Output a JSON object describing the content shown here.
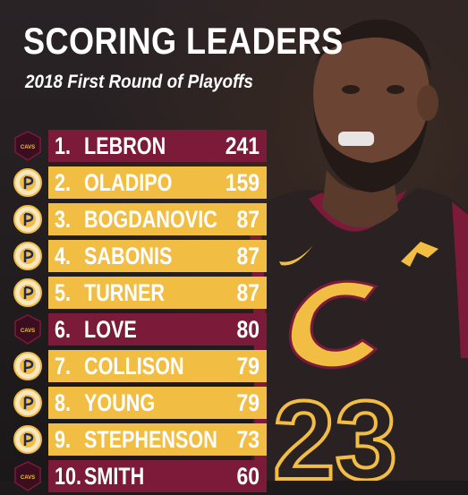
{
  "header": {
    "title": "SCORING LEADERS",
    "subtitle": "2018 First Round of Playoffs"
  },
  "team_colors": {
    "cavaliers": "#7c1a3a",
    "pacers": "#f1bd43"
  },
  "jersey": {
    "number": "23"
  },
  "leaders": [
    {
      "rank": "1.",
      "name": "LEBRON",
      "points": "241",
      "team": "cavaliers",
      "logo_icon": "cavaliers-logo-icon"
    },
    {
      "rank": "2.",
      "name": "OLADIPO",
      "points": "159",
      "team": "pacers",
      "logo_icon": "pacers-logo-icon"
    },
    {
      "rank": "3.",
      "name": "BOGDANOVIC",
      "points": "87",
      "team": "pacers",
      "logo_icon": "pacers-logo-icon"
    },
    {
      "rank": "4.",
      "name": "SABONIS",
      "points": "87",
      "team": "pacers",
      "logo_icon": "pacers-logo-icon"
    },
    {
      "rank": "5.",
      "name": "TURNER",
      "points": "87",
      "team": "pacers",
      "logo_icon": "pacers-logo-icon"
    },
    {
      "rank": "6.",
      "name": "LOVE",
      "points": "80",
      "team": "cavaliers",
      "logo_icon": "cavaliers-logo-icon"
    },
    {
      "rank": "7.",
      "name": "COLLISON",
      "points": "79",
      "team": "pacers",
      "logo_icon": "pacers-logo-icon"
    },
    {
      "rank": "8.",
      "name": "YOUNG",
      "points": "79",
      "team": "pacers",
      "logo_icon": "pacers-logo-icon"
    },
    {
      "rank": "9.",
      "name": "STEPHENSON",
      "points": "73",
      "team": "pacers",
      "logo_icon": "pacers-logo-icon"
    },
    {
      "rank": "10.",
      "name": "SMITH",
      "points": "60",
      "team": "cavaliers",
      "logo_icon": "cavaliers-logo-icon"
    }
  ]
}
